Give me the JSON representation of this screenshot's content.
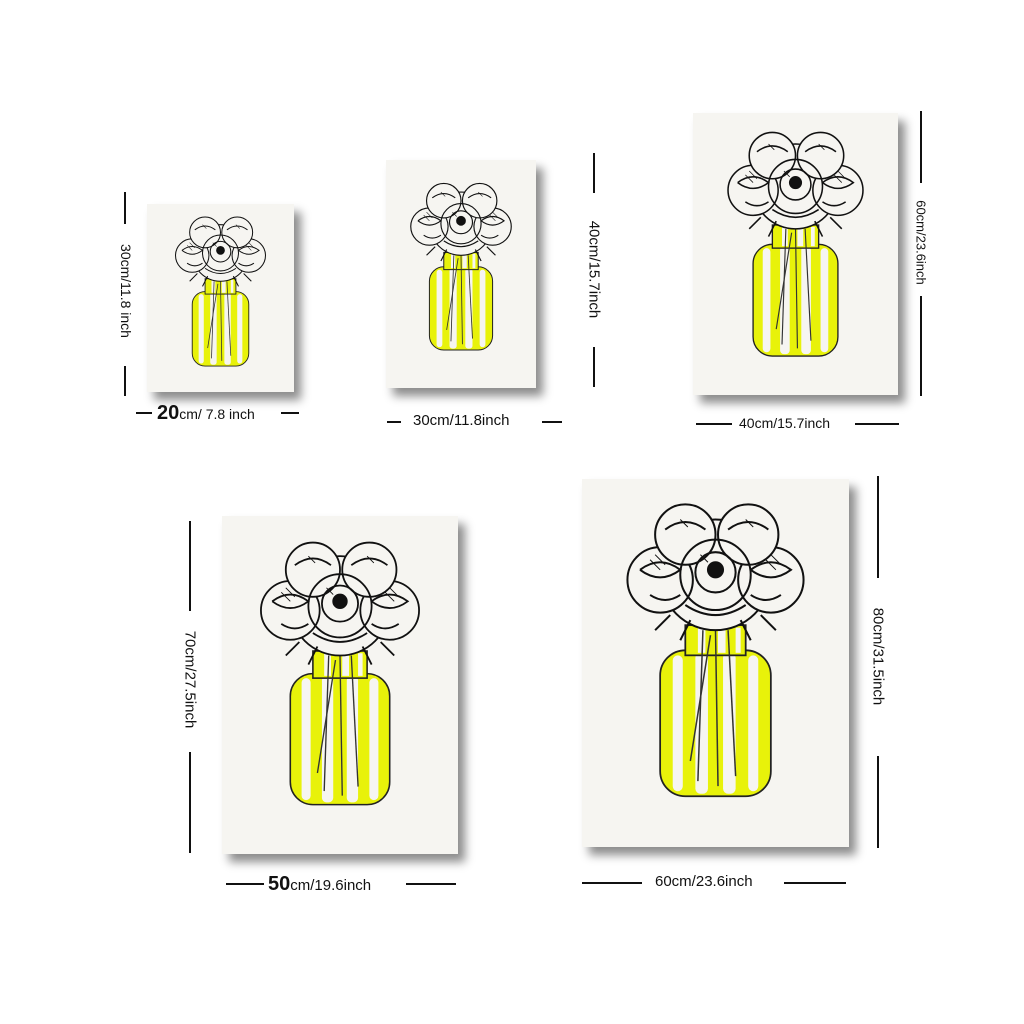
{
  "prints": [
    {
      "width_num": "20",
      "width_unit": "cm/ 7.8 inch",
      "height_num": "30",
      "height_unit": "cm/11.8 inch"
    },
    {
      "width_text": "30cm/11.8inch",
      "height_text": "40cm/15.7inch"
    },
    {
      "width_text": "40cm/15.7inch",
      "height_text": "60cm/23.6inch"
    },
    {
      "width_num": "50",
      "width_unit": "cm/19.6inch",
      "height_num": "70",
      "height_unit": "cm/27.5inch"
    },
    {
      "width_text": "60cm/23.6inch",
      "height_text": "80cm/31.5inch"
    }
  ],
  "colors": {
    "vase_stripe": "#e8f20a",
    "paper": "#f6f5f1",
    "ink": "#111111"
  }
}
